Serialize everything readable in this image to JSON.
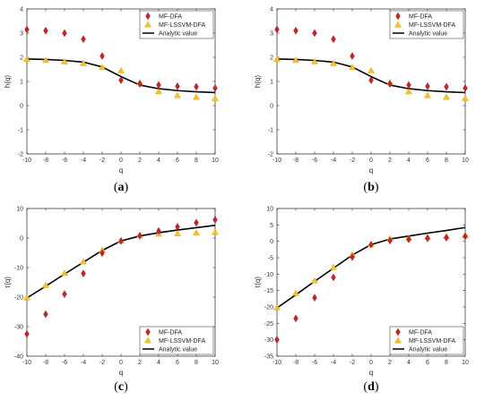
{
  "legend": {
    "mf_dfa": "MF-DFA",
    "mf_lssvm_dfa": "MF-LSSVM-DFA",
    "analytic": "Analytic value"
  },
  "colors": {
    "mf_dfa": "#c0272d",
    "mf_lssvm_dfa": "#f2c12e",
    "analytic": "#000000"
  },
  "chart_data": [
    {
      "panel": "(a)",
      "type": "scatter",
      "xlabel": "q",
      "ylabel": "h(q)",
      "xlim": [
        -10,
        10
      ],
      "ylim": [
        -2,
        4
      ],
      "xticks": [
        -10,
        -8,
        -6,
        -4,
        -2,
        0,
        2,
        4,
        6,
        8,
        10
      ],
      "yticks": [
        -2,
        -1,
        0,
        1,
        2,
        3,
        4
      ],
      "legend_position": "top-right",
      "grid": false,
      "series": [
        {
          "name": "MF-DFA",
          "marker": "diamond",
          "x": [
            -10,
            -8,
            -6,
            -4,
            -2,
            0,
            2,
            4,
            6,
            8,
            10
          ],
          "values": [
            3.15,
            3.1,
            3.0,
            2.75,
            2.05,
            1.05,
            0.9,
            0.85,
            0.8,
            0.78,
            0.72
          ]
        },
        {
          "name": "MF-LSSVM-DFA",
          "marker": "triangle",
          "x": [
            -10,
            -8,
            -6,
            -4,
            -2,
            0,
            2,
            4,
            6,
            8,
            10
          ],
          "values": [
            1.92,
            1.88,
            1.82,
            1.75,
            1.58,
            1.45,
            0.95,
            0.58,
            0.42,
            0.35,
            0.3
          ]
        },
        {
          "name": "Analytic value",
          "marker": "line",
          "x": [
            -10,
            -8,
            -6,
            -4,
            -2,
            0,
            2,
            4,
            6,
            8,
            10
          ],
          "values": [
            1.93,
            1.91,
            1.87,
            1.8,
            1.6,
            1.2,
            0.85,
            0.7,
            0.62,
            0.57,
            0.54
          ]
        }
      ]
    },
    {
      "panel": "(b)",
      "type": "scatter",
      "xlabel": "q",
      "ylabel": "h(q)",
      "xlim": [
        -10,
        10
      ],
      "ylim": [
        -2,
        4
      ],
      "xticks": [
        -10,
        -8,
        -6,
        -4,
        -2,
        0,
        2,
        4,
        6,
        8,
        10
      ],
      "yticks": [
        -2,
        -1,
        0,
        1,
        2,
        3,
        4
      ],
      "legend_position": "top-right",
      "grid": false,
      "series": [
        {
          "name": "MF-DFA",
          "marker": "diamond",
          "x": [
            -10,
            -8,
            -6,
            -4,
            -2,
            0,
            2,
            4,
            6,
            8,
            10
          ],
          "values": [
            3.15,
            3.1,
            3.0,
            2.75,
            2.05,
            1.05,
            0.9,
            0.85,
            0.8,
            0.78,
            0.72
          ]
        },
        {
          "name": "MF-LSSVM-DFA",
          "marker": "triangle",
          "x": [
            -10,
            -8,
            -6,
            -4,
            -2,
            0,
            2,
            4,
            6,
            8,
            10
          ],
          "values": [
            1.92,
            1.88,
            1.82,
            1.75,
            1.58,
            1.45,
            0.95,
            0.58,
            0.42,
            0.35,
            0.3
          ]
        },
        {
          "name": "Analytic value",
          "marker": "line",
          "x": [
            -10,
            -8,
            -6,
            -4,
            -2,
            0,
            2,
            4,
            6,
            8,
            10
          ],
          "values": [
            1.93,
            1.91,
            1.87,
            1.8,
            1.6,
            1.2,
            0.85,
            0.7,
            0.62,
            0.57,
            0.54
          ]
        }
      ]
    },
    {
      "panel": "(c)",
      "type": "scatter",
      "xlabel": "q",
      "ylabel": "τ(q)",
      "xlim": [
        -10,
        10
      ],
      "ylim": [
        -40,
        10
      ],
      "xticks": [
        -10,
        -8,
        -6,
        -4,
        -2,
        0,
        2,
        4,
        6,
        8,
        10
      ],
      "yticks": [
        -40,
        -30,
        -20,
        -10,
        0,
        10
      ],
      "legend_position": "bottom-right",
      "grid": false,
      "series": [
        {
          "name": "MF-DFA",
          "marker": "diamond",
          "x": [
            -10,
            -8,
            -6,
            -4,
            -2,
            0,
            2,
            4,
            6,
            8,
            10
          ],
          "values": [
            -32.5,
            -25.8,
            -19,
            -12,
            -5.1,
            -1,
            0.8,
            2.4,
            3.8,
            5.2,
            6.2
          ]
        },
        {
          "name": "MF-LSSVM-DFA",
          "marker": "triangle",
          "x": [
            -10,
            -8,
            -6,
            -4,
            -2,
            0,
            2,
            4,
            6,
            8,
            10
          ],
          "values": [
            -20.2,
            -16,
            -11.9,
            -8,
            -4.1,
            -1,
            0.9,
            1.4,
            1.5,
            1.8,
            2
          ]
        },
        {
          "name": "Analytic value",
          "marker": "line",
          "x": [
            -10,
            -8,
            -6,
            -4,
            -2,
            0,
            2,
            4,
            6,
            8,
            10
          ],
          "values": [
            -20.3,
            -16.3,
            -12.2,
            -8.2,
            -4.2,
            -1,
            0.7,
            1.8,
            2.7,
            3.5,
            4.3
          ]
        }
      ]
    },
    {
      "panel": "(d)",
      "type": "scatter",
      "xlabel": "q",
      "ylabel": "τ(q)",
      "xlim": [
        -10,
        10
      ],
      "ylim": [
        -35,
        10
      ],
      "xticks": [
        -10,
        -8,
        -6,
        -4,
        -2,
        0,
        2,
        4,
        6,
        8,
        10
      ],
      "yticks": [
        -35,
        -30,
        -25,
        -20,
        -15,
        -10,
        -5,
        0,
        5,
        10
      ],
      "legend_position": "bottom-right",
      "grid": false,
      "series": [
        {
          "name": "MF-DFA",
          "marker": "diamond",
          "x": [
            -10,
            -8,
            -6,
            -4,
            -2,
            0,
            2,
            4,
            6,
            8,
            10
          ],
          "values": [
            -30,
            -23.5,
            -17.2,
            -11,
            -4.8,
            -1,
            0.2,
            0.6,
            0.9,
            1.1,
            1.5
          ]
        },
        {
          "name": "MF-LSSVM-DFA",
          "marker": "triangle",
          "x": [
            -10,
            -8,
            -6,
            -4,
            -2,
            0,
            2,
            4,
            6,
            8,
            10
          ],
          "values": [
            -20.2,
            -15.8,
            -12,
            -7.9,
            -4,
            -1,
            0.8,
            1,
            1.3,
            1.5,
            1.8
          ]
        },
        {
          "name": "Analytic value",
          "marker": "line",
          "x": [
            -10,
            -8,
            -6,
            -4,
            -2,
            0,
            2,
            4,
            6,
            8,
            10
          ],
          "values": [
            -20.3,
            -16.3,
            -12.2,
            -8.2,
            -4.2,
            -1,
            0.7,
            1.6,
            2.5,
            3.3,
            4.2
          ]
        }
      ]
    }
  ]
}
